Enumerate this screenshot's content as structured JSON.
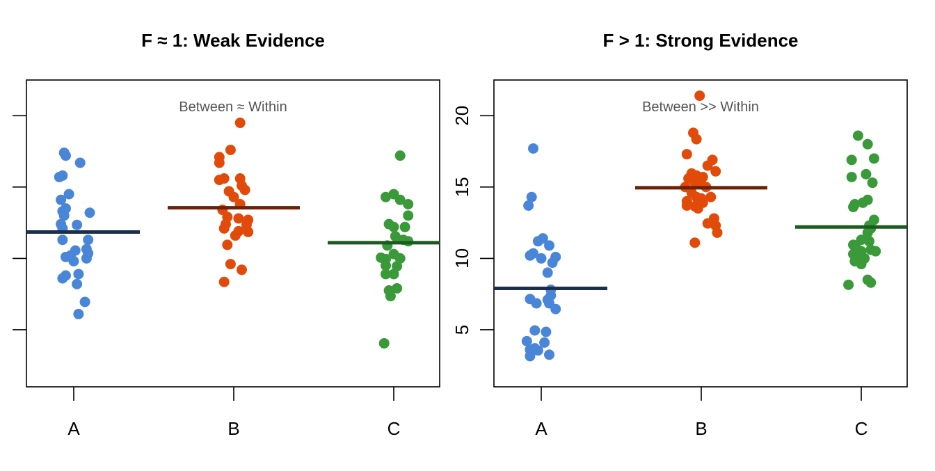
{
  "colors": {
    "A_points": "#4a86d8",
    "B_points": "#e24a0a",
    "C_points": "#3a9a3a",
    "A_mean": "#1b2f4c",
    "B_mean": "#6b2208",
    "C_mean": "#1d5a1f"
  },
  "chart_data": [
    {
      "type": "scatter",
      "title": "F ≈ 1: Weak Evidence",
      "annotation": "Between ≈ Within",
      "xlabel": "",
      "ylabel": "",
      "categories": [
        "A",
        "B",
        "C"
      ],
      "ylim": [
        1,
        22.5
      ],
      "yticks": [
        5,
        10,
        15,
        20
      ],
      "ytick_labels_visible": false,
      "grid": false,
      "series": [
        {
          "category": "A",
          "mean": 11.85,
          "points": [
            {
              "dx": -0.06,
              "y": 17.4
            },
            {
              "dx": -0.05,
              "y": 17.2
            },
            {
              "dx": 0.04,
              "y": 16.7
            },
            {
              "dx": -0.07,
              "y": 15.8
            },
            {
              "dx": -0.09,
              "y": 15.7
            },
            {
              "dx": -0.03,
              "y": 14.5
            },
            {
              "dx": -0.08,
              "y": 14.1
            },
            {
              "dx": -0.05,
              "y": 13.5
            },
            {
              "dx": -0.07,
              "y": 13.3
            },
            {
              "dx": 0.1,
              "y": 13.2
            },
            {
              "dx": -0.06,
              "y": 13.0
            },
            {
              "dx": -0.08,
              "y": 12.4
            },
            {
              "dx": 0.02,
              "y": 12.35
            },
            {
              "dx": -0.07,
              "y": 12.1
            },
            {
              "dx": 0.09,
              "y": 11.3
            },
            {
              "dx": -0.07,
              "y": 11.3
            },
            {
              "dx": 0.08,
              "y": 10.65
            },
            {
              "dx": 0.01,
              "y": 10.55
            },
            {
              "dx": 0.09,
              "y": 10.35
            },
            {
              "dx": -0.02,
              "y": 10.2
            },
            {
              "dx": -0.05,
              "y": 10.1
            },
            {
              "dx": 0.08,
              "y": 10.0
            },
            {
              "dx": 0.0,
              "y": 9.8
            },
            {
              "dx": 0.03,
              "y": 8.9
            },
            {
              "dx": -0.05,
              "y": 8.8
            },
            {
              "dx": -0.07,
              "y": 8.6
            },
            {
              "dx": 0.02,
              "y": 8.2
            },
            {
              "dx": 0.07,
              "y": 6.95
            },
            {
              "dx": 0.03,
              "y": 6.1
            }
          ]
        },
        {
          "category": "B",
          "mean": 13.55,
          "points": [
            {
              "dx": 0.04,
              "y": 19.5
            },
            {
              "dx": -0.02,
              "y": 17.6
            },
            {
              "dx": -0.09,
              "y": 17.1
            },
            {
              "dx": -0.09,
              "y": 16.7
            },
            {
              "dx": -0.06,
              "y": 15.6
            },
            {
              "dx": 0.04,
              "y": 15.6
            },
            {
              "dx": -0.09,
              "y": 15.5
            },
            {
              "dx": 0.05,
              "y": 15.1
            },
            {
              "dx": 0.07,
              "y": 14.8
            },
            {
              "dx": -0.03,
              "y": 14.7
            },
            {
              "dx": 0.0,
              "y": 14.3
            },
            {
              "dx": 0.04,
              "y": 13.8
            },
            {
              "dx": -0.07,
              "y": 13.4
            },
            {
              "dx": -0.04,
              "y": 12.9
            },
            {
              "dx": 0.03,
              "y": 12.8
            },
            {
              "dx": 0.09,
              "y": 12.7
            },
            {
              "dx": -0.05,
              "y": 12.4
            },
            {
              "dx": 0.08,
              "y": 12.35
            },
            {
              "dx": -0.06,
              "y": 12.1
            },
            {
              "dx": 0.03,
              "y": 11.9
            },
            {
              "dx": 0.09,
              "y": 11.85
            },
            {
              "dx": 0.01,
              "y": 11.6
            },
            {
              "dx": -0.04,
              "y": 10.95
            },
            {
              "dx": -0.02,
              "y": 9.6
            },
            {
              "dx": 0.05,
              "y": 9.2
            },
            {
              "dx": -0.06,
              "y": 8.35
            }
          ]
        },
        {
          "category": "C",
          "mean": 11.1,
          "points": [
            {
              "dx": 0.04,
              "y": 17.2
            },
            {
              "dx": 0.0,
              "y": 14.5
            },
            {
              "dx": -0.05,
              "y": 14.3
            },
            {
              "dx": 0.04,
              "y": 14.1
            },
            {
              "dx": 0.09,
              "y": 13.8
            },
            {
              "dx": 0.09,
              "y": 13.0
            },
            {
              "dx": -0.03,
              "y": 12.4
            },
            {
              "dx": 0.0,
              "y": 12.2
            },
            {
              "dx": 0.07,
              "y": 12.2
            },
            {
              "dx": 0.01,
              "y": 11.55
            },
            {
              "dx": 0.06,
              "y": 11.3
            },
            {
              "dx": 0.09,
              "y": 11.2
            },
            {
              "dx": -0.04,
              "y": 10.9
            },
            {
              "dx": 0.0,
              "y": 10.3
            },
            {
              "dx": -0.08,
              "y": 10.05
            },
            {
              "dx": 0.04,
              "y": 10.0
            },
            {
              "dx": -0.05,
              "y": 9.95
            },
            {
              "dx": -0.05,
              "y": 9.5
            },
            {
              "dx": 0.02,
              "y": 9.45
            },
            {
              "dx": -0.05,
              "y": 8.9
            },
            {
              "dx": 0.0,
              "y": 8.9
            },
            {
              "dx": 0.02,
              "y": 7.9
            },
            {
              "dx": -0.03,
              "y": 7.75
            },
            {
              "dx": -0.02,
              "y": 7.35
            },
            {
              "dx": -0.06,
              "y": 4.05
            }
          ]
        }
      ]
    },
    {
      "type": "scatter",
      "title": "F > 1: Strong Evidence",
      "annotation": "Between >> Within",
      "xlabel": "",
      "ylabel": "",
      "categories": [
        "A",
        "B",
        "C"
      ],
      "ylim": [
        1,
        22.5
      ],
      "yticks": [
        5,
        10,
        15,
        20
      ],
      "ytick_labels_visible": true,
      "grid": false,
      "series": [
        {
          "category": "A",
          "mean": 7.9,
          "points": [
            {
              "dx": -0.05,
              "y": 17.7
            },
            {
              "dx": -0.06,
              "y": 14.3
            },
            {
              "dx": -0.08,
              "y": 13.7
            },
            {
              "dx": 0.01,
              "y": 11.4
            },
            {
              "dx": -0.02,
              "y": 11.2
            },
            {
              "dx": 0.05,
              "y": 10.9
            },
            {
              "dx": -0.05,
              "y": 10.35
            },
            {
              "dx": -0.07,
              "y": 10.2
            },
            {
              "dx": 0.09,
              "y": 10.1
            },
            {
              "dx": 0.0,
              "y": 10.0
            },
            {
              "dx": 0.07,
              "y": 9.7
            },
            {
              "dx": 0.04,
              "y": 9.0
            },
            {
              "dx": 0.06,
              "y": 7.8
            },
            {
              "dx": 0.06,
              "y": 7.4
            },
            {
              "dx": -0.07,
              "y": 7.15
            },
            {
              "dx": 0.04,
              "y": 7.1
            },
            {
              "dx": -0.03,
              "y": 6.85
            },
            {
              "dx": 0.05,
              "y": 6.85
            },
            {
              "dx": 0.09,
              "y": 6.45
            },
            {
              "dx": -0.04,
              "y": 4.95
            },
            {
              "dx": 0.03,
              "y": 4.85
            },
            {
              "dx": -0.09,
              "y": 4.2
            },
            {
              "dx": 0.02,
              "y": 4.1
            },
            {
              "dx": -0.04,
              "y": 3.7
            },
            {
              "dx": -0.07,
              "y": 3.6
            },
            {
              "dx": -0.02,
              "y": 3.55
            },
            {
              "dx": 0.05,
              "y": 3.25
            },
            {
              "dx": -0.07,
              "y": 3.15
            }
          ]
        },
        {
          "category": "B",
          "mean": 14.95,
          "points": [
            {
              "dx": -0.01,
              "y": 21.4
            },
            {
              "dx": -0.05,
              "y": 18.8
            },
            {
              "dx": -0.03,
              "y": 18.35
            },
            {
              "dx": -0.09,
              "y": 17.3
            },
            {
              "dx": 0.07,
              "y": 16.9
            },
            {
              "dx": 0.04,
              "y": 16.5
            },
            {
              "dx": 0.09,
              "y": 16.1
            },
            {
              "dx": -0.06,
              "y": 15.95
            },
            {
              "dx": -0.03,
              "y": 15.8
            },
            {
              "dx": 0.01,
              "y": 15.7
            },
            {
              "dx": -0.08,
              "y": 15.6
            },
            {
              "dx": -0.04,
              "y": 15.3
            },
            {
              "dx": 0.0,
              "y": 15.2
            },
            {
              "dx": 0.03,
              "y": 15.0
            },
            {
              "dx": -0.1,
              "y": 15.0
            },
            {
              "dx": -0.06,
              "y": 14.6
            },
            {
              "dx": 0.06,
              "y": 14.3
            },
            {
              "dx": -0.03,
              "y": 14.3
            },
            {
              "dx": 0.0,
              "y": 14.2
            },
            {
              "dx": -0.09,
              "y": 14.0
            },
            {
              "dx": 0.01,
              "y": 13.9
            },
            {
              "dx": -0.04,
              "y": 13.65
            },
            {
              "dx": -0.09,
              "y": 13.7
            },
            {
              "dx": -0.02,
              "y": 13.5
            },
            {
              "dx": 0.08,
              "y": 12.8
            },
            {
              "dx": 0.04,
              "y": 12.45
            },
            {
              "dx": 0.09,
              "y": 12.3
            },
            {
              "dx": 0.1,
              "y": 11.8
            },
            {
              "dx": -0.04,
              "y": 11.1
            }
          ]
        },
        {
          "category": "C",
          "mean": 12.2,
          "points": [
            {
              "dx": -0.02,
              "y": 18.6
            },
            {
              "dx": 0.04,
              "y": 18.0
            },
            {
              "dx": -0.06,
              "y": 16.9
            },
            {
              "dx": 0.08,
              "y": 17.0
            },
            {
              "dx": 0.03,
              "y": 15.9
            },
            {
              "dx": -0.06,
              "y": 15.7
            },
            {
              "dx": 0.07,
              "y": 15.3
            },
            {
              "dx": 0.04,
              "y": 14.1
            },
            {
              "dx": 0.01,
              "y": 13.9
            },
            {
              "dx": -0.04,
              "y": 13.8
            },
            {
              "dx": -0.05,
              "y": 13.6
            },
            {
              "dx": 0.08,
              "y": 12.7
            },
            {
              "dx": 0.05,
              "y": 12.3
            },
            {
              "dx": 0.06,
              "y": 12.1
            },
            {
              "dx": 0.04,
              "y": 11.8
            },
            {
              "dx": 0.0,
              "y": 11.3
            },
            {
              "dx": 0.05,
              "y": 11.2
            },
            {
              "dx": -0.05,
              "y": 10.95
            },
            {
              "dx": -0.03,
              "y": 10.7
            },
            {
              "dx": 0.06,
              "y": 10.6
            },
            {
              "dx": 0.09,
              "y": 10.5
            },
            {
              "dx": 0.0,
              "y": 10.5
            },
            {
              "dx": -0.05,
              "y": 10.3
            },
            {
              "dx": -0.03,
              "y": 10.1
            },
            {
              "dx": 0.02,
              "y": 10.0
            },
            {
              "dx": -0.04,
              "y": 9.8
            },
            {
              "dx": 0.0,
              "y": 9.6
            },
            {
              "dx": 0.04,
              "y": 8.5
            },
            {
              "dx": 0.06,
              "y": 8.3
            },
            {
              "dx": -0.08,
              "y": 8.15
            }
          ]
        }
      ]
    }
  ]
}
